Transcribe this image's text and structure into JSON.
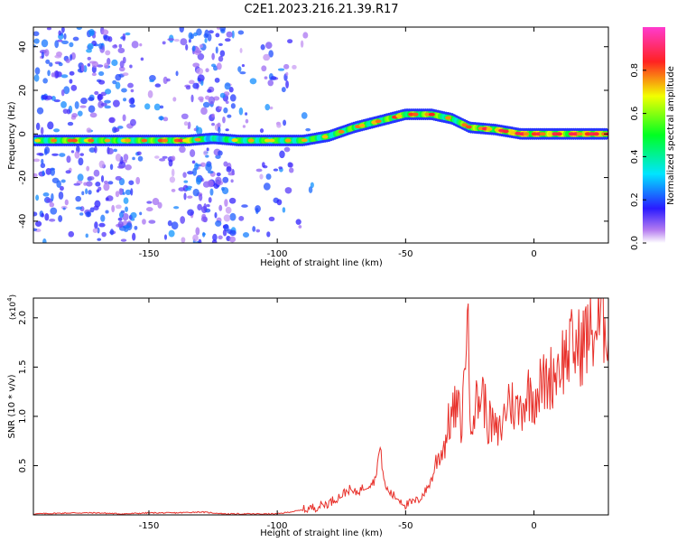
{
  "title": "C2E1.2023.216.21.39.R17",
  "chart_data": [
    {
      "type": "heatmap",
      "xlabel": "Height of straight line (km)",
      "ylabel": "Frequency (Hz)",
      "xlim": [
        -195,
        29
      ],
      "ylim": [
        -50,
        49
      ],
      "x_ticks": [
        -150,
        -100,
        -50,
        0
      ],
      "y_ticks": [
        -40,
        -20,
        0,
        20,
        40
      ],
      "colorbar": {
        "label": "Normalized spectral amplitude",
        "range": [
          0,
          1
        ],
        "ticks": [
          0.0,
          0.2,
          0.4,
          0.6,
          0.8
        ],
        "colormap": [
          "#9b27e3",
          "#2a1bff",
          "#00e5ff",
          "#00ff22",
          "#f2ff00",
          "#ff2222",
          "#ff3bcf"
        ]
      },
      "ridge": [
        {
          "x": -195,
          "freq": -3,
          "amp": 0.55
        },
        {
          "x": -180,
          "freq": -3,
          "amp": 0.7
        },
        {
          "x": -165,
          "freq": -3,
          "amp": 0.6
        },
        {
          "x": -150,
          "freq": -3,
          "amp": 0.65
        },
        {
          "x": -135,
          "freq": -3,
          "amp": 0.75
        },
        {
          "x": -125,
          "freq": -2,
          "amp": 0.4
        },
        {
          "x": -115,
          "freq": -3,
          "amp": 0.6
        },
        {
          "x": -100,
          "freq": -3,
          "amp": 0.6
        },
        {
          "x": -90,
          "freq": -3,
          "amp": 0.6
        },
        {
          "x": -80,
          "freq": -1,
          "amp": 0.6
        },
        {
          "x": -70,
          "freq": 3,
          "amp": 0.65
        },
        {
          "x": -60,
          "freq": 6,
          "amp": 0.65
        },
        {
          "x": -50,
          "freq": 9,
          "amp": 0.7
        },
        {
          "x": -40,
          "freq": 9,
          "amp": 0.7
        },
        {
          "x": -32,
          "freq": 7,
          "amp": 0.6
        },
        {
          "x": -25,
          "freq": 3,
          "amp": 0.7
        },
        {
          "x": -15,
          "freq": 2,
          "amp": 0.75
        },
        {
          "x": -5,
          "freq": 0,
          "amp": 0.85
        },
        {
          "x": 5,
          "freq": 0,
          "amp": 0.75
        },
        {
          "x": 15,
          "freq": 0,
          "amp": 0.8
        },
        {
          "x": 29,
          "freq": 0,
          "amp": 0.85
        }
      ]
    },
    {
      "type": "line",
      "xlabel": "Height of straight line (km)",
      "ylabel": "SNR (10 * v/v)",
      "y_multiplier": "(x10",
      "y_multiplier_exp": "4",
      "y_multiplier_close": ")",
      "xlim": [
        -195,
        29
      ],
      "ylim": [
        0,
        2.2
      ],
      "x_ticks": [
        -150,
        -100,
        -50,
        0
      ],
      "y_ticks": [
        0.5,
        1.0,
        1.5,
        2.0
      ],
      "series": [
        {
          "color": "#e8312b",
          "x": [
            -195,
            -180,
            -170,
            -160,
            -150,
            -140,
            -130,
            -120,
            -110,
            -100,
            -95,
            -90,
            -85,
            -80,
            -75,
            -72,
            -70,
            -68,
            -65,
            -62,
            -60,
            -58,
            -55,
            -52,
            -50,
            -48,
            -45,
            -42,
            -40,
            -38,
            -35,
            -33,
            -30,
            -28,
            -26,
            -25,
            -23,
            -20,
            -18,
            -16,
            -14,
            -12,
            -10,
            -8,
            -6,
            -4,
            -2,
            0,
            2,
            5,
            8,
            10,
            12,
            15,
            18,
            20,
            23,
            26,
            29
          ],
          "y": [
            0.01,
            0.02,
            0.02,
            0.01,
            0.02,
            0.02,
            0.03,
            0.01,
            0.01,
            0.01,
            0.03,
            0.05,
            0.08,
            0.12,
            0.2,
            0.26,
            0.22,
            0.25,
            0.3,
            0.35,
            0.68,
            0.28,
            0.2,
            0.15,
            0.1,
            0.12,
            0.15,
            0.25,
            0.35,
            0.55,
            0.7,
            0.95,
            1.1,
            0.9,
            2.2,
            1.05,
            1.1,
            1.25,
            0.95,
            0.9,
            0.8,
            0.95,
            1.2,
            1.1,
            1.05,
            1.15,
            1.25,
            1.2,
            1.3,
            1.35,
            1.45,
            1.55,
            1.6,
            1.7,
            1.7,
            1.8,
            1.85,
            1.95,
            2.0
          ]
        }
      ]
    }
  ]
}
